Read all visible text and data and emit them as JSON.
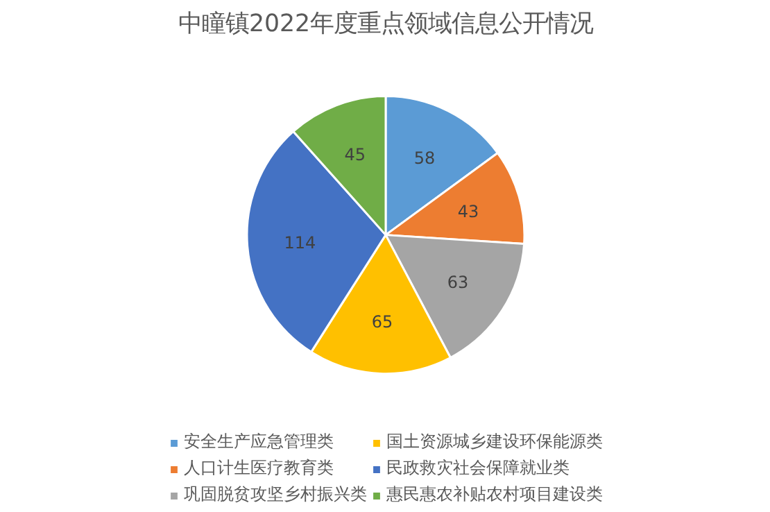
{
  "chart_data": {
    "type": "pie",
    "title": "中瞳镇2022年度重点领域信息公开情况",
    "categories": [
      "安全生产应急管理类",
      "人口计生医疗教育类",
      "巩固脱贫攻坚乡村振兴类",
      "国土资源城乡建设环保能源类",
      "民政救灾社会保障就业类",
      "惠民惠农补贴农村项目建设类"
    ],
    "values": [
      58,
      43,
      63,
      65,
      114,
      45
    ],
    "colors": [
      "#5b9bd5",
      "#ed7d31",
      "#a5a5a5",
      "#ffc000",
      "#4472c4",
      "#70ad47"
    ],
    "data_labels": true,
    "legend": "bottom"
  }
}
